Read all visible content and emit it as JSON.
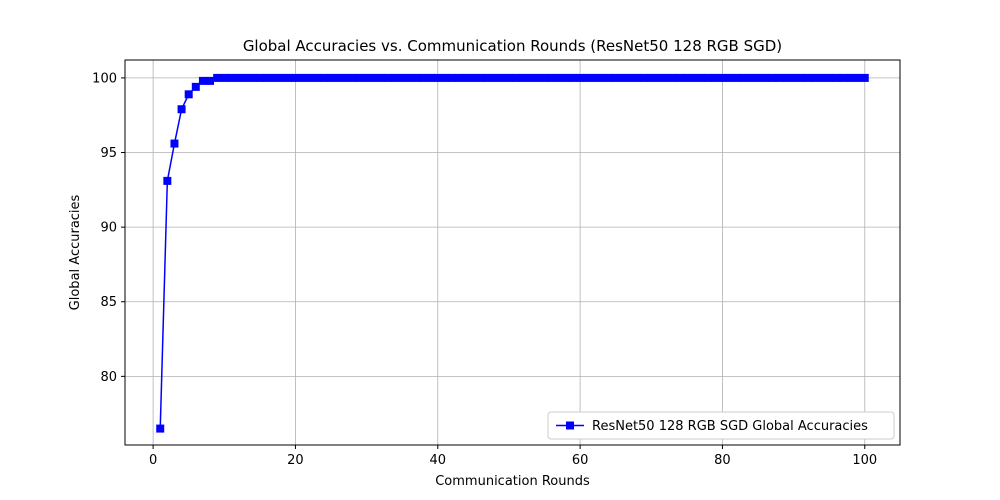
{
  "chart_data": {
    "type": "line",
    "title": "Global Accuracies vs. Communication Rounds (ResNet50 128 RGB SGD)",
    "xlabel": "Communication Rounds",
    "ylabel": "Global Accuracies",
    "xlim": [
      -3.95,
      104.95
    ],
    "ylim": [
      75.4,
      101.2
    ],
    "xticks": [
      0,
      20,
      40,
      60,
      80,
      100
    ],
    "yticks": [
      80,
      85,
      90,
      95,
      100
    ],
    "grid": true,
    "legend_position": "lower-right",
    "series": [
      {
        "name": "ResNet50 128 RGB SGD Global Accuracies",
        "color": "#0000ff",
        "marker": "square",
        "x": [
          1,
          2,
          3,
          4,
          5,
          6,
          7,
          8,
          9,
          10,
          11,
          12,
          13,
          14,
          15,
          16,
          17,
          18,
          19,
          20,
          21,
          22,
          23,
          24,
          25,
          26,
          27,
          28,
          29,
          30,
          31,
          32,
          33,
          34,
          35,
          36,
          37,
          38,
          39,
          40,
          41,
          42,
          43,
          44,
          45,
          46,
          47,
          48,
          49,
          50,
          51,
          52,
          53,
          54,
          55,
          56,
          57,
          58,
          59,
          60,
          61,
          62,
          63,
          64,
          65,
          66,
          67,
          68,
          69,
          70,
          71,
          72,
          73,
          74,
          75,
          76,
          77,
          78,
          79,
          80,
          81,
          82,
          83,
          84,
          85,
          86,
          87,
          88,
          89,
          90,
          91,
          92,
          93,
          94,
          95,
          96,
          97,
          98,
          99,
          100
        ],
        "values": [
          76.5,
          93.1,
          95.6,
          97.9,
          98.9,
          99.4,
          99.8,
          99.8,
          100,
          100,
          100,
          100,
          100,
          100,
          100,
          100,
          100,
          100,
          100,
          100,
          100,
          100,
          100,
          100,
          100,
          100,
          100,
          100,
          100,
          100,
          100,
          100,
          100,
          100,
          100,
          100,
          100,
          100,
          100,
          100,
          100,
          100,
          100,
          100,
          100,
          100,
          100,
          100,
          100,
          100,
          100,
          100,
          100,
          100,
          100,
          100,
          100,
          100,
          100,
          100,
          100,
          100,
          100,
          100,
          100,
          100,
          100,
          100,
          100,
          100,
          100,
          100,
          100,
          100,
          100,
          100,
          100,
          100,
          100,
          100,
          100,
          100,
          100,
          100,
          100,
          100,
          100,
          100,
          100,
          100,
          100,
          100,
          100,
          100,
          100,
          100,
          100,
          100,
          100,
          100
        ]
      }
    ]
  }
}
